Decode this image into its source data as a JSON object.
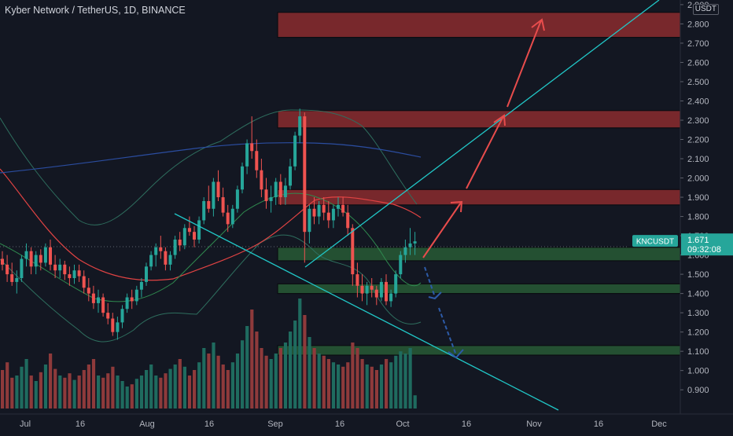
{
  "header": {
    "symbol_title": "Kyber Network / TetherUS, 1D, BINANCE",
    "currency_badge": "USDT"
  },
  "price_scale": {
    "ticks": [
      "2.900",
      "2.800",
      "2.700",
      "2.600",
      "2.500",
      "2.400",
      "2.300",
      "2.200",
      "2.100",
      "2.000",
      "1.900",
      "1.800",
      "1.700",
      "1.600",
      "1.500",
      "1.400",
      "1.300",
      "1.200",
      "1.100",
      "1.000",
      "0.900"
    ]
  },
  "time_axis": {
    "labels": [
      "Jul",
      "16",
      "Aug",
      "16",
      "Sep",
      "16",
      "Oct",
      "16",
      "Nov",
      "16",
      "Dec"
    ]
  },
  "last_price": {
    "symbol": "KNCUSDT",
    "price": "1.671",
    "countdown": "09:32:08"
  },
  "colors": {
    "background": "#131722",
    "up_candle": "#26a69a",
    "down_candle": "#ef5350",
    "resistance_zone": "#8b2b2e",
    "support_zone": "#285b35",
    "trendline": "#21c7c7",
    "forecast_up_arrow": "#e84c4c",
    "forecast_down_arrow": "#2d5ba8",
    "price_label_bg": "#26a69a"
  },
  "chart_data": {
    "type": "candlestick",
    "title": "Kyber Network / TetherUS, 1D, BINANCE",
    "ylim": [
      0.86,
      2.92
    ],
    "y_ticks": [
      2.9,
      2.8,
      2.7,
      2.6,
      2.5,
      2.4,
      2.3,
      2.2,
      2.1,
      2.0,
      1.9,
      1.8,
      1.7,
      1.6,
      1.5,
      1.4,
      1.3,
      1.2,
      1.1,
      1.0,
      0.9
    ],
    "x_labels": [
      "Jul",
      "16",
      "Aug",
      "16",
      "Sep",
      "16",
      "Oct",
      "16",
      "Nov",
      "16",
      "Dec"
    ],
    "candles": [
      [
        1.58,
        1.62,
        1.52,
        1.55
      ],
      [
        1.55,
        1.6,
        1.46,
        1.5
      ],
      [
        1.5,
        1.56,
        1.44,
        1.46
      ],
      [
        1.46,
        1.52,
        1.4,
        1.48
      ],
      [
        1.48,
        1.6,
        1.46,
        1.58
      ],
      [
        1.58,
        1.66,
        1.54,
        1.62
      ],
      [
        1.62,
        1.64,
        1.5,
        1.54
      ],
      [
        1.54,
        1.62,
        1.5,
        1.6
      ],
      [
        1.6,
        1.63,
        1.52,
        1.56
      ],
      [
        1.56,
        1.66,
        1.54,
        1.64
      ],
      [
        1.64,
        1.68,
        1.52,
        1.55
      ],
      [
        1.55,
        1.6,
        1.48,
        1.52
      ],
      [
        1.52,
        1.58,
        1.48,
        1.55
      ],
      [
        1.55,
        1.57,
        1.47,
        1.5
      ],
      [
        1.5,
        1.54,
        1.44,
        1.48
      ],
      [
        1.48,
        1.55,
        1.45,
        1.52
      ],
      [
        1.52,
        1.55,
        1.46,
        1.49
      ],
      [
        1.49,
        1.52,
        1.4,
        1.43
      ],
      [
        1.43,
        1.48,
        1.36,
        1.4
      ],
      [
        1.4,
        1.44,
        1.32,
        1.35
      ],
      [
        1.35,
        1.42,
        1.3,
        1.38
      ],
      [
        1.38,
        1.4,
        1.28,
        1.3
      ],
      [
        1.3,
        1.35,
        1.24,
        1.27
      ],
      [
        1.27,
        1.3,
        1.18,
        1.2
      ],
      [
        1.2,
        1.28,
        1.16,
        1.25
      ],
      [
        1.25,
        1.34,
        1.22,
        1.32
      ],
      [
        1.32,
        1.4,
        1.3,
        1.38
      ],
      [
        1.38,
        1.42,
        1.32,
        1.36
      ],
      [
        1.36,
        1.44,
        1.34,
        1.42
      ],
      [
        1.42,
        1.48,
        1.38,
        1.46
      ],
      [
        1.46,
        1.56,
        1.44,
        1.54
      ],
      [
        1.54,
        1.62,
        1.52,
        1.6
      ],
      [
        1.6,
        1.66,
        1.54,
        1.64
      ],
      [
        1.64,
        1.7,
        1.58,
        1.62
      ],
      [
        1.62,
        1.64,
        1.52,
        1.55
      ],
      [
        1.55,
        1.62,
        1.52,
        1.6
      ],
      [
        1.6,
        1.7,
        1.58,
        1.68
      ],
      [
        1.68,
        1.72,
        1.62,
        1.65
      ],
      [
        1.65,
        1.76,
        1.63,
        1.74
      ],
      [
        1.74,
        1.8,
        1.7,
        1.72
      ],
      [
        1.72,
        1.75,
        1.64,
        1.68
      ],
      [
        1.68,
        1.8,
        1.66,
        1.78
      ],
      [
        1.78,
        1.9,
        1.76,
        1.88
      ],
      [
        1.88,
        1.96,
        1.82,
        1.84
      ],
      [
        1.84,
        2.0,
        1.8,
        1.98
      ],
      [
        1.98,
        2.04,
        1.88,
        1.9
      ],
      [
        1.9,
        1.95,
        1.8,
        1.82
      ],
      [
        1.82,
        1.86,
        1.72,
        1.76
      ],
      [
        1.76,
        1.86,
        1.74,
        1.84
      ],
      [
        1.84,
        1.96,
        1.82,
        1.94
      ],
      [
        1.94,
        2.08,
        1.92,
        2.06
      ],
      [
        2.06,
        2.2,
        2.02,
        2.18
      ],
      [
        2.18,
        2.32,
        2.1,
        2.14
      ],
      [
        2.14,
        2.2,
        2.0,
        2.04
      ],
      [
        2.04,
        2.1,
        1.9,
        1.94
      ],
      [
        1.94,
        2.0,
        1.84,
        1.88
      ],
      [
        1.88,
        1.96,
        1.82,
        1.9
      ],
      [
        1.9,
        2.0,
        1.86,
        1.98
      ],
      [
        1.98,
        2.02,
        1.86,
        1.9
      ],
      [
        1.9,
        2.0,
        1.86,
        1.96
      ],
      [
        1.96,
        2.1,
        1.94,
        2.06
      ],
      [
        2.06,
        2.24,
        2.04,
        2.22
      ],
      [
        2.22,
        2.36,
        2.18,
        2.32
      ],
      [
        2.32,
        2.34,
        1.56,
        1.72
      ],
      [
        1.72,
        1.86,
        1.66,
        1.84
      ],
      [
        1.84,
        1.9,
        1.76,
        1.8
      ],
      [
        1.8,
        1.88,
        1.76,
        1.86
      ],
      [
        1.86,
        1.9,
        1.78,
        1.82
      ],
      [
        1.82,
        1.88,
        1.74,
        1.78
      ],
      [
        1.78,
        1.86,
        1.74,
        1.84
      ],
      [
        1.84,
        1.9,
        1.8,
        1.86
      ],
      [
        1.86,
        1.9,
        1.8,
        1.82
      ],
      [
        1.82,
        1.86,
        1.7,
        1.74
      ],
      [
        1.74,
        1.76,
        1.44,
        1.5
      ],
      [
        1.5,
        1.56,
        1.38,
        1.44
      ],
      [
        1.44,
        1.5,
        1.36,
        1.4
      ],
      [
        1.4,
        1.46,
        1.34,
        1.44
      ],
      [
        1.44,
        1.48,
        1.38,
        1.42
      ],
      [
        1.42,
        1.44,
        1.34,
        1.38
      ],
      [
        1.38,
        1.48,
        1.36,
        1.46
      ],
      [
        1.46,
        1.5,
        1.34,
        1.36
      ],
      [
        1.36,
        1.42,
        1.33,
        1.4
      ],
      [
        1.4,
        1.52,
        1.38,
        1.5
      ],
      [
        1.5,
        1.62,
        1.48,
        1.6
      ],
      [
        1.6,
        1.68,
        1.56,
        1.64
      ],
      [
        1.64,
        1.74,
        1.6,
        1.66
      ],
      [
        1.66,
        1.72,
        1.6,
        1.671
      ]
    ],
    "volume": [
      0.35,
      0.42,
      0.28,
      0.3,
      0.38,
      0.45,
      0.3,
      0.25,
      0.33,
      0.4,
      0.5,
      0.36,
      0.3,
      0.28,
      0.32,
      0.26,
      0.3,
      0.35,
      0.4,
      0.45,
      0.3,
      0.28,
      0.32,
      0.38,
      0.3,
      0.25,
      0.2,
      0.22,
      0.27,
      0.3,
      0.35,
      0.4,
      0.3,
      0.28,
      0.32,
      0.36,
      0.4,
      0.45,
      0.38,
      0.3,
      0.35,
      0.42,
      0.55,
      0.5,
      0.6,
      0.48,
      0.4,
      0.35,
      0.42,
      0.5,
      0.62,
      0.75,
      0.9,
      0.7,
      0.55,
      0.48,
      0.45,
      0.5,
      0.55,
      0.6,
      0.7,
      0.8,
      1.0,
      0.85,
      0.65,
      0.55,
      0.5,
      0.48,
      0.45,
      0.42,
      0.4,
      0.38,
      0.42,
      0.6,
      0.55,
      0.45,
      0.4,
      0.38,
      0.35,
      0.4,
      0.45,
      0.42,
      0.48,
      0.52,
      0.5,
      0.55,
      0.12
    ],
    "zones": [
      {
        "kind": "resistance",
        "from": 2.73,
        "to": 2.86
      },
      {
        "kind": "resistance",
        "from": 2.26,
        "to": 2.35
      },
      {
        "kind": "resistance",
        "from": 1.86,
        "to": 1.94
      },
      {
        "kind": "support",
        "from": 1.57,
        "to": 1.64
      },
      {
        "kind": "support",
        "from": 1.4,
        "to": 1.45
      },
      {
        "kind": "support",
        "from": 1.08,
        "to": 1.13
      }
    ],
    "last_price": 1.671
  }
}
